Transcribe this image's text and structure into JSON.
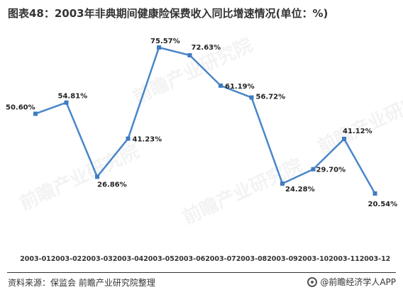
{
  "title": "图表48：2003年非典期间健康险保费收入同比增速情况(单位：%)",
  "footer": {
    "source": "资料来源：保监会 前瞻产业研究院整理",
    "brand": "@前瞻经济学人APP"
  },
  "watermark_text": "前瞻产业研究院",
  "colors": {
    "line": "#4a86c8",
    "marker": "#3f7bc0",
    "text": "#222222"
  },
  "chart_data": {
    "type": "line",
    "categories": [
      "2003-01",
      "2003-02",
      "2003-03",
      "2003-04",
      "2003-05",
      "2003-06",
      "2003-07",
      "2003-08",
      "2003-09",
      "2003-10",
      "2003-11",
      "2003-12"
    ],
    "series": [
      {
        "values": [
          50.6,
          54.81,
          26.86,
          41.23,
          75.57,
          72.63,
          61.19,
          56.72,
          24.28,
          29.7,
          41.12,
          20.54
        ]
      }
    ],
    "data_labels": [
      "50.60%",
      "54.81%",
      "26.86%",
      "41.23%",
      "75.57%",
      "72.63%",
      "61.19%",
      "56.72%",
      "24.28%",
      "29.70%",
      "41.12%",
      "20.54%"
    ],
    "grid": false,
    "legend": "none"
  }
}
